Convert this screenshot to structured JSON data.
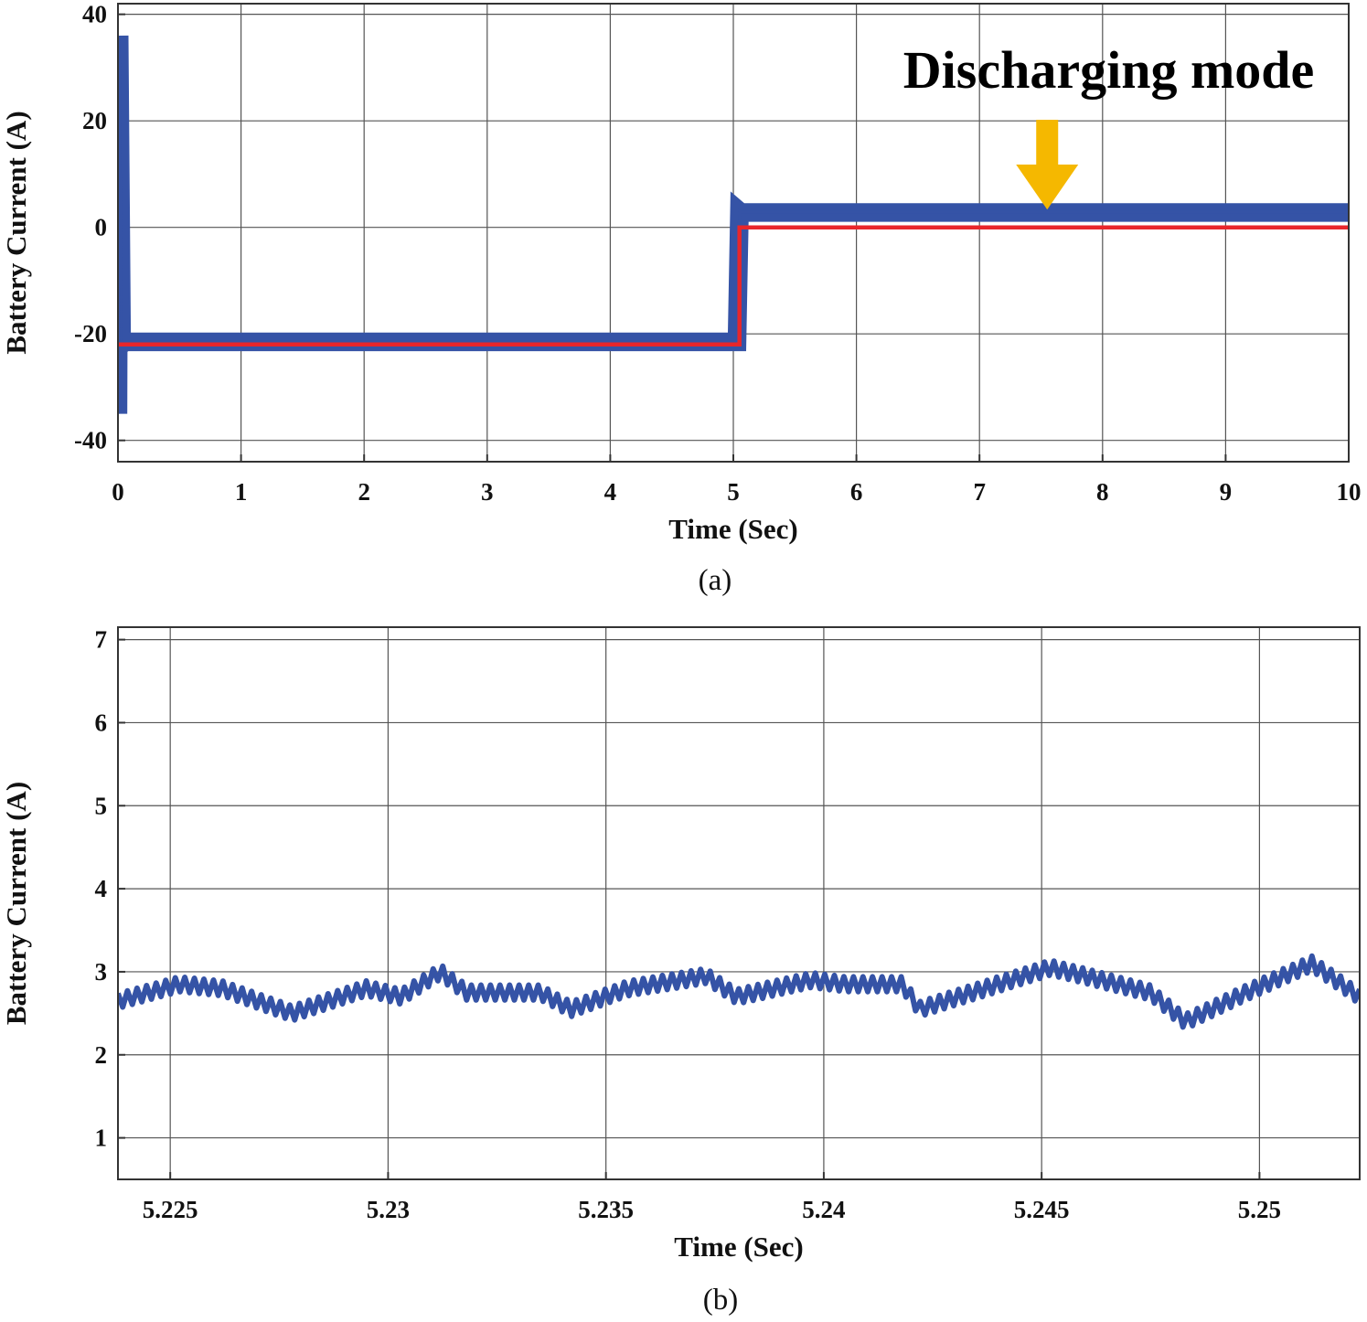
{
  "colors": {
    "measured": "#3553a6",
    "reference": "#e8262b",
    "arrow": "#f5b800"
  },
  "chart_data": [
    {
      "type": "line",
      "caption": "(a)",
      "xlabel": "Time (Sec)",
      "ylabel": "Battery Current (A)",
      "xlim": [
        0,
        10
      ],
      "ylim": [
        -44,
        42
      ],
      "xticks": [
        0,
        1,
        2,
        3,
        4,
        5,
        6,
        7,
        8,
        9,
        10
      ],
      "yticks": [
        -40,
        -20,
        0,
        20,
        40
      ],
      "grid": true,
      "annotation": {
        "text": "Discharging mode",
        "x": 7.55,
        "y": 3.0
      },
      "series": [
        {
          "color": "#3553a6",
          "x": [
            0,
            0.01,
            0.03,
            0.06,
            0.2,
            1,
            2,
            3,
            4,
            5,
            5.03,
            5.05,
            5.06,
            6,
            7,
            8,
            9,
            10
          ],
          "y": [
            -35,
            36,
            -22,
            -21.5,
            -21.5,
            -21.5,
            -21.5,
            -21.5,
            -21.5,
            -21.5,
            -21.5,
            3.0,
            2.8,
            2.8,
            2.8,
            2.8,
            2.8,
            2.8
          ],
          "band": 3.5
        },
        {
          "color": "#e8262b",
          "x": [
            0,
            5.05,
            5.05,
            10
          ],
          "y": [
            -22,
            -22,
            0,
            0
          ]
        }
      ]
    },
    {
      "type": "line",
      "caption": "(b)",
      "xlabel": "Time (Sec)",
      "ylabel": "Battery Current (A)",
      "xlim": [
        5.2238,
        5.2523
      ],
      "ylim": [
        0.5,
        7.15
      ],
      "xticks": [
        5.225,
        5.23,
        5.235,
        5.24,
        5.245,
        5.25
      ],
      "xtick_labels": [
        "5.225",
        "5.23",
        "5.235",
        "5.24",
        "5.245",
        "5.25"
      ],
      "yticks": [
        1,
        2,
        3,
        4,
        5,
        6,
        7
      ],
      "grid": true,
      "series": [
        {
          "color": "#3553a6",
          "ripple": 0.18,
          "x": [
            5.2238,
            5.2252,
            5.2262,
            5.2278,
            5.2295,
            5.2303,
            5.2312,
            5.2318,
            5.2335,
            5.2342,
            5.2355,
            5.2373,
            5.238,
            5.2397,
            5.2405,
            5.2418,
            5.2422,
            5.244,
            5.2452,
            5.246,
            5.2475,
            5.2483,
            5.2497,
            5.2512,
            5.2523
          ],
          "y": [
            2.65,
            2.85,
            2.8,
            2.5,
            2.8,
            2.7,
            3.0,
            2.75,
            2.75,
            2.55,
            2.8,
            2.95,
            2.7,
            2.9,
            2.85,
            2.85,
            2.55,
            2.85,
            3.05,
            2.95,
            2.75,
            2.4,
            2.75,
            3.1,
            2.7
          ]
        }
      ]
    }
  ]
}
